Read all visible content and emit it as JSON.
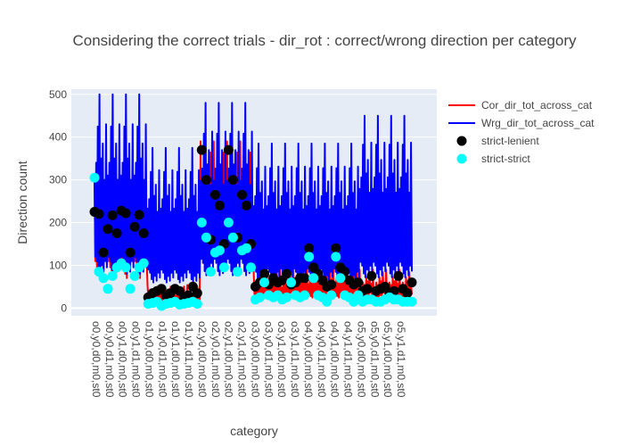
{
  "chart_data": {
    "type": "line",
    "title": "Considering the correct trials - dir_rot : correct/wrong direction per category",
    "xlabel": "category",
    "ylabel": "Direction count",
    "ylim": [
      -18,
      512
    ],
    "y_ticks": [
      0,
      100,
      200,
      300,
      400,
      500
    ],
    "x_tick_labels": [
      "o0,y0,d0,m0,st0",
      "o0,y0,d1,m0,st0",
      "o0,y1,d0,m0,st0",
      "o0,y1,d1,m0,st0",
      "o1,y0,d0,m0,st0",
      "o1,y0,d1,m0,st0",
      "o1,y1,d0,m0,st0",
      "o1,y1,d1,m0,st0",
      "o2,y0,d0,m0,st0",
      "o2,y0,d1,m0,st0",
      "o2,y1,d0,m0,st0",
      "o2,y1,d1,m0,st0",
      "o3,y0,d0,m0,st0",
      "o3,y0,d1,m0,st0",
      "o3,y1,d0,m0,st0",
      "o3,y1,d1,m0,st0",
      "o4,y0,d0,m0,st0",
      "o4,y0,d1,m0,st0",
      "o4,y1,d0,m0,st0",
      "o4,y1,d1,m0,st0",
      "o5,y0,d0,m0,st0",
      "o5,y0,d1,m0,st0",
      "o5,y1,d0,m0,st0",
      "o5,y1,d1,m0,st0"
    ],
    "blocks_per_category": 4,
    "series": [
      {
        "name": "Cor_dir_tot_across_cat",
        "kind": "line",
        "color": "#ff0000",
        "cycle": [
          300,
          110,
          160,
          95,
          200,
          80,
          180,
          70,
          240,
          100,
          210,
          90,
          280,
          120,
          190,
          105
        ],
        "o_scale": [
          1.0,
          0.18,
          1.3,
          0.3,
          0.35,
          0.3
        ]
      },
      {
        "name": "Wrg_dir_tot_across_cat",
        "kind": "line",
        "color": "#0000ff",
        "cycle": [
          310,
          120,
          340,
          110,
          425,
          90,
          500,
          80,
          350,
          100,
          385,
          85,
          300,
          110,
          430,
          95
        ],
        "o_scale": [
          1.0,
          0.75,
          0.96,
          0.77,
          0.77,
          0.9
        ]
      },
      {
        "name": "strict-lenient",
        "kind": "markers",
        "color": "#000000",
        "values": [
          225,
          220,
          130,
          185,
          217,
          175,
          228,
          222,
          130,
          190,
          218,
          175,
          25,
          35,
          40,
          45,
          30,
          35,
          45,
          40,
          25,
          30,
          50,
          35,
          370,
          300,
          160,
          265,
          240,
          150,
          370,
          300,
          165,
          265,
          240,
          150,
          50,
          60,
          80,
          55,
          70,
          60,
          65,
          80,
          55,
          60,
          70,
          70,
          140,
          95,
          80,
          65,
          50,
          55,
          140,
          95,
          85,
          65,
          55,
          60,
          40,
          45,
          75,
          40,
          45,
          50,
          35,
          40,
          75,
          45,
          35,
          60
        ]
      },
      {
        "name": "strict-strict",
        "kind": "markers",
        "color": "#00ffff",
        "values": [
          305,
          85,
          70,
          45,
          75,
          95,
          105,
          95,
          45,
          75,
          95,
          105,
          10,
          12,
          15,
          5,
          10,
          12,
          15,
          8,
          10,
          12,
          15,
          10,
          200,
          165,
          85,
          130,
          135,
          95,
          200,
          165,
          85,
          135,
          140,
          95,
          20,
          25,
          60,
          30,
          25,
          30,
          20,
          25,
          60,
          30,
          25,
          30,
          120,
          70,
          30,
          25,
          15,
          30,
          120,
          70,
          30,
          25,
          15,
          30,
          15,
          20,
          20,
          15,
          15,
          20,
          25,
          20,
          20,
          15,
          15,
          15
        ]
      }
    ],
    "legend_position": "top-right",
    "grid": true
  }
}
